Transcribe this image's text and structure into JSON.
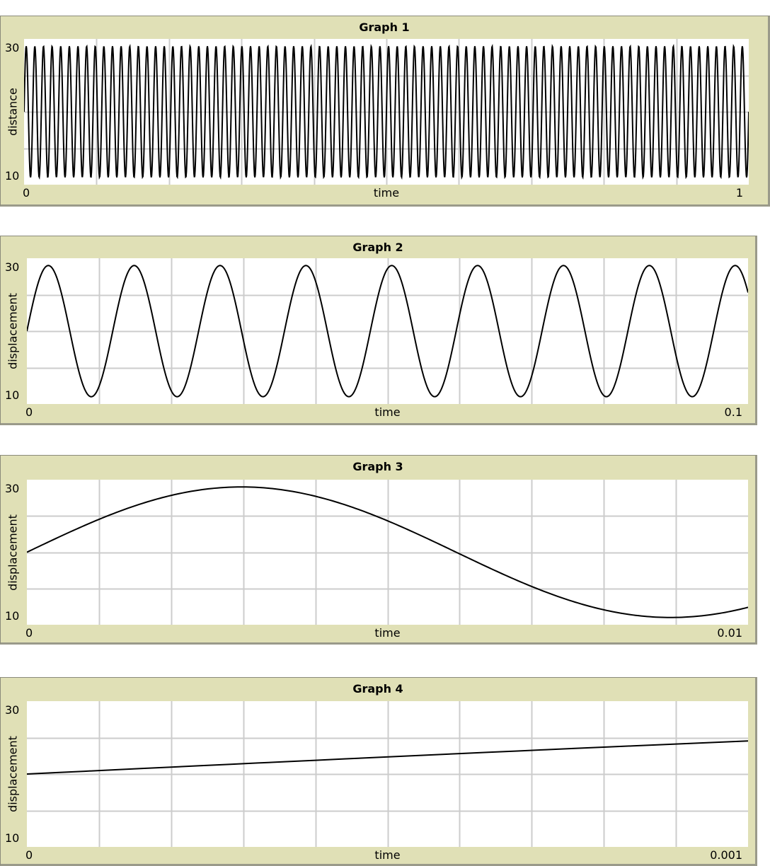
{
  "chart_data": [
    {
      "type": "line",
      "title": "Graph 1",
      "xlabel": "time",
      "ylabel": "distance",
      "xlim": [
        0,
        1
      ],
      "ylim": [
        10,
        30
      ],
      "x_tick_labels": [
        "0",
        "1"
      ],
      "y_tick_labels": [
        "10",
        "30"
      ],
      "grid": true,
      "series": [
        {
          "color": "#000000",
          "function": {
            "kind": "sine",
            "offset": 20,
            "amplitude": 9,
            "frequency_hz": 84,
            "sample_step": 0.0005
          }
        }
      ]
    },
    {
      "type": "line",
      "title": "Graph 2",
      "xlabel": "time",
      "ylabel": "displacement",
      "xlim": [
        0,
        0.1
      ],
      "ylim": [
        10,
        30
      ],
      "x_tick_labels": [
        "0",
        "0.1"
      ],
      "y_tick_labels": [
        "10",
        "30"
      ],
      "grid": true,
      "series": [
        {
          "color": "#000000",
          "function": {
            "kind": "sine",
            "offset": 20,
            "amplitude": 9,
            "frequency_hz": 84,
            "sample_step": 0.0001
          }
        }
      ]
    },
    {
      "type": "line",
      "title": "Graph 3",
      "xlabel": "time",
      "ylabel": "displacement",
      "xlim": [
        0,
        0.01
      ],
      "ylim": [
        10,
        30
      ],
      "x_tick_labels": [
        "0",
        "0.01"
      ],
      "y_tick_labels": [
        "10",
        "30"
      ],
      "grid": true,
      "series": [
        {
          "color": "#000000",
          "function": {
            "kind": "sine",
            "offset": 20,
            "amplitude": 9,
            "frequency_hz": 84,
            "sample_step": 4e-05
          }
        }
      ]
    },
    {
      "type": "line",
      "title": "Graph 4",
      "xlabel": "time",
      "ylabel": "displacement",
      "xlim": [
        0,
        0.001
      ],
      "ylim": [
        10,
        30
      ],
      "x_tick_labels": [
        "0",
        "0.001"
      ],
      "y_tick_labels": [
        "10",
        "30"
      ],
      "grid": true,
      "series": [
        {
          "color": "#000000",
          "function": {
            "kind": "sine",
            "offset": 20,
            "amplitude": 9,
            "frequency_hz": 84,
            "sample_step": 4e-05
          }
        }
      ]
    }
  ]
}
